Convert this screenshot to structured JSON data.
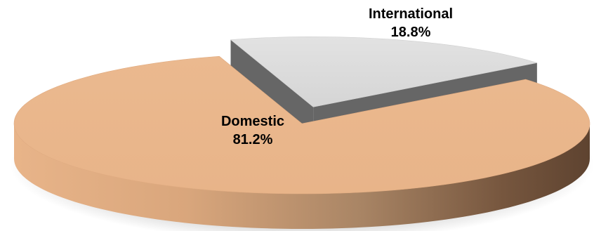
{
  "chart_data": {
    "type": "pie",
    "title": "",
    "slices": [
      {
        "label": "Domestic",
        "value": 81.2,
        "value_label": "81.2%",
        "color": "#e8b489",
        "exploded": false
      },
      {
        "label": "International",
        "value": 18.8,
        "value_label": "18.8%",
        "color": "#d9d9d9",
        "exploded": true
      }
    ],
    "style": "3d",
    "legend": "none"
  }
}
